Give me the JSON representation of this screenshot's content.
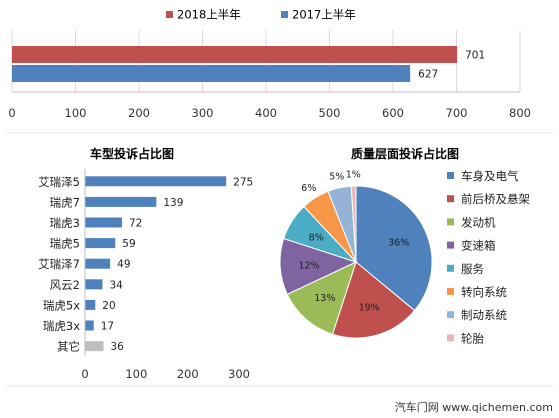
{
  "colors": {
    "series_2018": "#c0504d",
    "series_2017": "#4f81bd",
    "bar_default": "#4f81bd",
    "bar_other": "#bfbfbf",
    "pie": [
      "#4f81bd",
      "#c0504d",
      "#9bbb59",
      "#8064a2",
      "#4bacc6",
      "#f79646",
      "#95b3d7",
      "#e6b9b8"
    ]
  },
  "chart_data": [
    {
      "type": "bar",
      "orientation": "horizontal",
      "series": [
        {
          "name": "2018上半年",
          "values": [
            701
          ]
        },
        {
          "name": "2017上半年",
          "values": [
            627
          ]
        }
      ],
      "xlim": [
        0,
        800
      ],
      "xticks": [
        "0",
        "100",
        "200",
        "300",
        "400",
        "500",
        "600",
        "700",
        "800"
      ],
      "legend": "top",
      "grid": true
    },
    {
      "type": "bar",
      "orientation": "horizontal",
      "title": "车型投诉占比图",
      "categories": [
        "艾瑞泽5",
        "瑞虎7",
        "瑞虎3",
        "瑞虎5",
        "艾瑞泽7",
        "风云2",
        "瑞虎5x",
        "瑞虎3x",
        "其它"
      ],
      "values": [
        275,
        139,
        72,
        59,
        49,
        34,
        20,
        17,
        36
      ],
      "xlim": [
        0,
        300
      ],
      "xticks": [
        "0",
        "100",
        "200",
        "300"
      ]
    },
    {
      "type": "pie",
      "title": "质量层面投诉占比图",
      "categories": [
        "车身及电气",
        "前后桥及悬架",
        "发动机",
        "变速箱",
        "服务",
        "转向系统",
        "制动系统",
        "轮胎"
      ],
      "values": [
        36,
        19,
        13,
        12,
        8,
        6,
        5,
        1
      ],
      "labels": [
        "36%",
        "19%",
        "13%",
        "12%",
        "8%",
        "6%",
        "5%",
        "1%"
      ],
      "legend": "right"
    }
  ],
  "watermark": {
    "text": "汽车门网 www.qichemen.com"
  }
}
